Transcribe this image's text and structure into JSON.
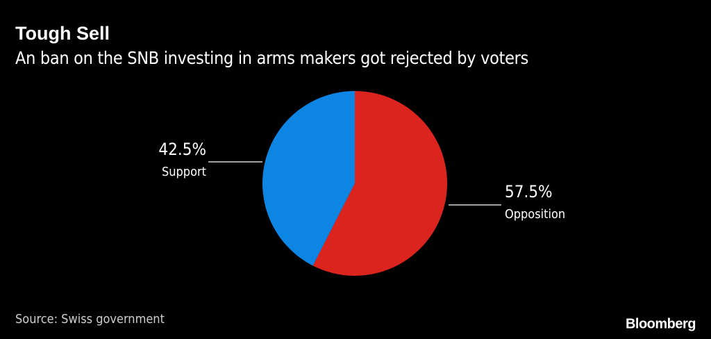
{
  "chart_data": {
    "type": "pie",
    "title": "Tough Sell",
    "subtitle": "An ban on the SNB investing in arms makers got rejected by voters",
    "categories": [
      "Opposition",
      "Support"
    ],
    "values": [
      57.5,
      42.5
    ],
    "value_labels": [
      "57.5%",
      "42.5%"
    ],
    "colors": [
      "#dc241f",
      "#0d85e3"
    ],
    "source": "Source: Swiss government",
    "brand": "Bloomberg"
  }
}
